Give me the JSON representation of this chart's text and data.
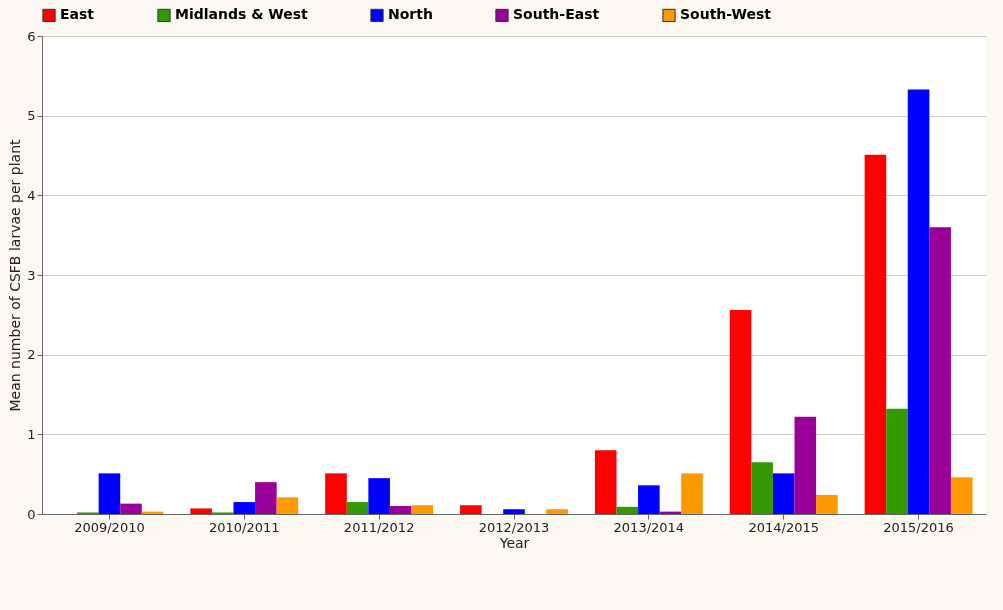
{
  "chart_data": {
    "type": "bar",
    "xlabel": "Year",
    "ylabel": "Mean number of CSFB larvae per plant",
    "categories": [
      "2009/2010",
      "2010/2011",
      "2011/2012",
      "2012/2013",
      "2013/2014",
      "2014/2015",
      "2015/2016"
    ],
    "series": [
      {
        "name": "East",
        "color": "#ff0000",
        "values": [
          0,
          0.07,
          0.51,
          0.11,
          0.8,
          2.56,
          4.51
        ]
      },
      {
        "name": "Midlands & West",
        "color": "#339900",
        "values": [
          0.02,
          0.02,
          0.15,
          0,
          0.09,
          0.65,
          1.32
        ]
      },
      {
        "name": "North",
        "color": "#0000ff",
        "values": [
          0.51,
          0.15,
          0.45,
          0.06,
          0.36,
          0.51,
          5.33
        ]
      },
      {
        "name": "South-East",
        "color": "#990099",
        "values": [
          0.13,
          0.4,
          0.1,
          0,
          0.03,
          1.22,
          3.6
        ]
      },
      {
        "name": "South-West",
        "color": "#ff9900",
        "values": [
          0.03,
          0.21,
          0.11,
          0.06,
          0.51,
          0.24,
          0.46
        ]
      }
    ],
    "ylim": [
      0,
      6
    ],
    "yticks": [
      0,
      1,
      2,
      3,
      4,
      5,
      6
    ],
    "grid": "y",
    "legend": "top"
  }
}
